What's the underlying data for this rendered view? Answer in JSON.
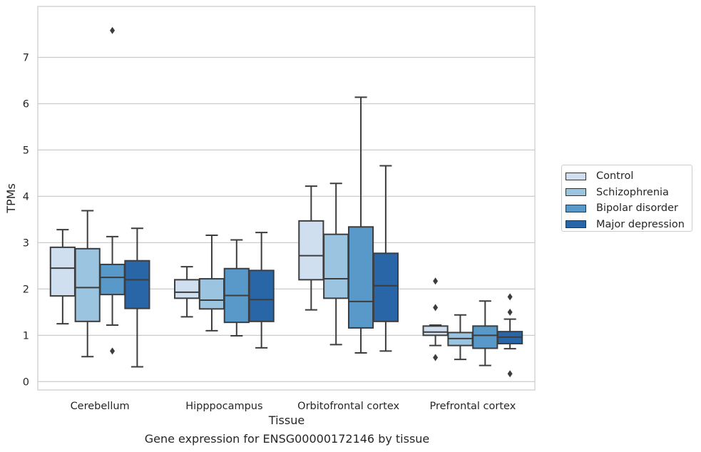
{
  "chart_data": {
    "type": "boxplot",
    "xlabel": "Tissue",
    "ylabel": "TPMs",
    "caption": "Gene expression for ENSG00000172146 by tissue",
    "ylim": [
      -0.18,
      8.1
    ],
    "yticks": [
      "0",
      "1",
      "2",
      "3",
      "4",
      "5",
      "6",
      "7"
    ],
    "grid": "horizontal",
    "legend_placement": "right",
    "categories": [
      "Cerebellum",
      "Hipppocampus",
      "Orbitofrontal cortex",
      "Prefrontal cortex"
    ],
    "series": [
      {
        "name": "Control",
        "color": "#d0dfef",
        "boxes": [
          {
            "whislo": 1.25,
            "q1": 1.85,
            "med": 2.45,
            "q3": 2.9,
            "whishi": 3.28,
            "fliers": []
          },
          {
            "whislo": 1.4,
            "q1": 1.8,
            "med": 1.93,
            "q3": 2.2,
            "whishi": 2.48,
            "fliers": []
          },
          {
            "whislo": 1.55,
            "q1": 2.2,
            "med": 2.72,
            "q3": 3.47,
            "whishi": 4.22,
            "fliers": []
          },
          {
            "whislo": 0.78,
            "q1": 1.0,
            "med": 1.07,
            "q3": 1.2,
            "whishi": 1.22,
            "fliers": [
              0.52,
              1.6,
              2.17
            ]
          }
        ]
      },
      {
        "name": "Schizophrenia",
        "color": "#9ac4e0",
        "boxes": [
          {
            "whislo": 0.54,
            "q1": 1.3,
            "med": 2.03,
            "q3": 2.87,
            "whishi": 3.69,
            "fliers": []
          },
          {
            "whislo": 1.1,
            "q1": 1.57,
            "med": 1.76,
            "q3": 2.22,
            "whishi": 3.16,
            "fliers": []
          },
          {
            "whislo": 0.8,
            "q1": 1.8,
            "med": 2.22,
            "q3": 3.18,
            "whishi": 4.28,
            "fliers": []
          },
          {
            "whislo": 0.48,
            "q1": 0.78,
            "med": 0.93,
            "q3": 1.06,
            "whishi": 1.44,
            "fliers": []
          }
        ]
      },
      {
        "name": "Bipolar disorder",
        "color": "#5899c9",
        "boxes": [
          {
            "whislo": 1.22,
            "q1": 1.88,
            "med": 2.25,
            "q3": 2.53,
            "whishi": 3.13,
            "fliers": [
              0.66,
              7.58
            ]
          },
          {
            "whislo": 0.99,
            "q1": 1.28,
            "med": 1.86,
            "q3": 2.44,
            "whishi": 3.06,
            "fliers": []
          },
          {
            "whislo": 0.62,
            "q1": 1.16,
            "med": 1.73,
            "q3": 3.34,
            "whishi": 6.14,
            "fliers": []
          },
          {
            "whislo": 0.35,
            "q1": 0.72,
            "med": 1.0,
            "q3": 1.2,
            "whishi": 1.74,
            "fliers": []
          }
        ]
      },
      {
        "name": "Major depression",
        "color": "#2966a8",
        "boxes": [
          {
            "whislo": 0.32,
            "q1": 1.58,
            "med": 2.2,
            "q3": 2.61,
            "whishi": 3.31,
            "fliers": []
          },
          {
            "whislo": 0.73,
            "q1": 1.3,
            "med": 1.77,
            "q3": 2.4,
            "whishi": 3.22,
            "fliers": []
          },
          {
            "whislo": 0.66,
            "q1": 1.3,
            "med": 2.07,
            "q3": 2.77,
            "whishi": 4.66,
            "fliers": []
          },
          {
            "whislo": 0.71,
            "q1": 0.82,
            "med": 0.96,
            "q3": 1.08,
            "whishi": 1.35,
            "fliers": [
              0.17,
              1.5,
              1.83
            ]
          }
        ]
      }
    ]
  }
}
